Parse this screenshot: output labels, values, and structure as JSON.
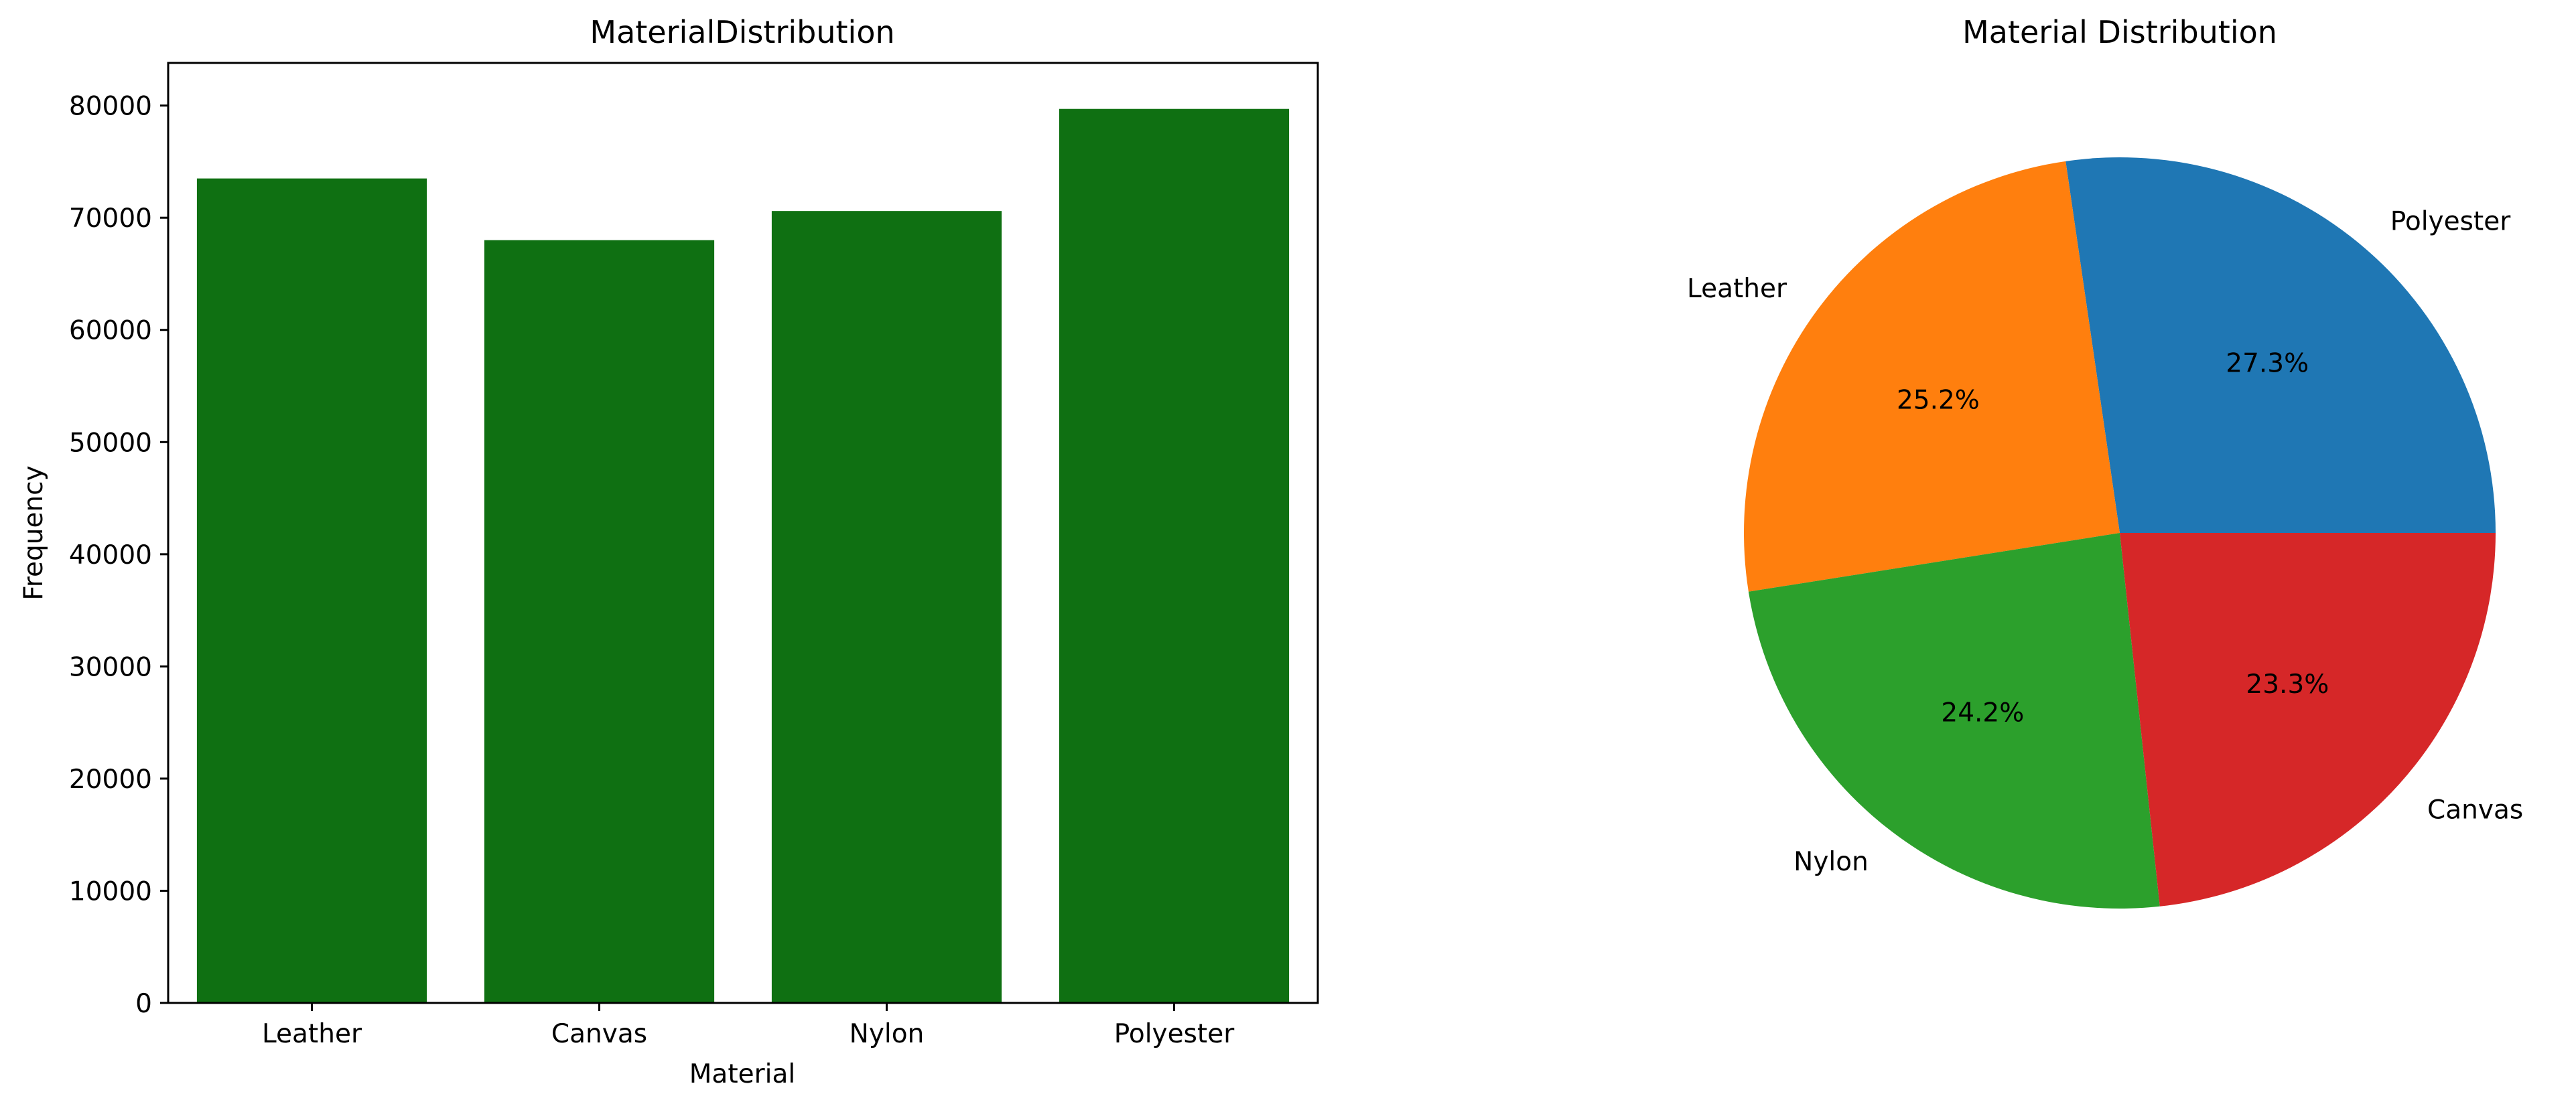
{
  "chart_data": [
    {
      "type": "bar",
      "title": "MaterialDistribution",
      "xlabel": "Material",
      "ylabel": "Frequency",
      "categories": [
        "Leather",
        "Canvas",
        "Nylon",
        "Polyester"
      ],
      "values": [
        73500,
        68000,
        70600,
        79700
      ],
      "ylim": [
        0,
        83800
      ],
      "yticks": [
        0,
        10000,
        20000,
        30000,
        40000,
        50000,
        60000,
        70000,
        80000
      ],
      "color": "#0f7012",
      "grid": false
    },
    {
      "type": "pie",
      "title": "Material Distribution",
      "slices": [
        {
          "label": "Polyester",
          "value": 27.3,
          "pct_label": "27.3%",
          "color": "#1f77b4"
        },
        {
          "label": "Leather",
          "value": 25.2,
          "pct_label": "25.2%",
          "color": "#ff7f0e"
        },
        {
          "label": "Nylon",
          "value": 24.2,
          "pct_label": "24.2%",
          "color": "#2ca02c"
        },
        {
          "label": "Canvas",
          "value": 23.3,
          "pct_label": "23.3%",
          "color": "#d62728"
        }
      ],
      "start_angle": 0,
      "direction": "counterclockwise"
    }
  ]
}
